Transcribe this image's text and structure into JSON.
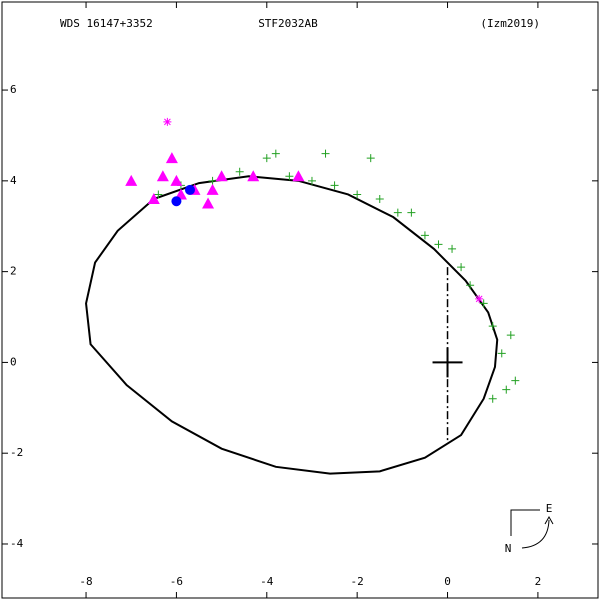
{
  "chart_data": {
    "type": "orbit",
    "title": "WDS 16147+3352",
    "subtitle": "STF2032AB",
    "source": "(Izm2019)",
    "compass": {
      "east": "E",
      "north": "N"
    },
    "xlim": [
      -9.86,
      3.33
    ],
    "ylim": [
      -5.19,
      7.94
    ],
    "xticks": [
      -8,
      -6,
      -4,
      -2,
      0,
      2
    ],
    "yticks": [
      -4,
      -2,
      0,
      2,
      4,
      6
    ],
    "series": [
      {
        "name": "orbit",
        "style": "line",
        "color": "#000000",
        "x": [
          -6.5,
          -5.5,
          -4.4,
          -3.3,
          -2.2,
          -1.2,
          -0.3,
          0.4,
          0.9,
          1.1,
          1.05,
          0.8,
          0.3,
          -0.5,
          -1.5,
          -2.6,
          -3.8,
          -5.0,
          -6.1,
          -7.1,
          -7.9,
          -8.0,
          -7.8,
          -7.3,
          -6.5
        ],
        "y": [
          3.6,
          3.95,
          4.1,
          4.0,
          3.7,
          3.2,
          2.5,
          1.8,
          1.1,
          0.5,
          -0.1,
          -0.8,
          -1.6,
          -2.1,
          -2.4,
          -2.45,
          -2.3,
          -1.9,
          -1.3,
          -0.5,
          0.4,
          1.3,
          2.2,
          2.9,
          3.6
        ]
      },
      {
        "name": "line of nodes",
        "style": "dashdot",
        "color": "#000000",
        "x": [
          0,
          0
        ],
        "y": [
          2.1,
          -1.75
        ]
      },
      {
        "name": "micrometric",
        "style": "plus",
        "color": "#22a022",
        "x": [
          -6.4,
          -5.9,
          -5.2,
          -4.6,
          -4.0,
          -3.8,
          -3.5,
          -3.0,
          -2.7,
          -2.5,
          -2.0,
          -1.7,
          -1.5,
          -1.1,
          -0.8,
          -0.5,
          -0.2,
          0.1,
          0.3,
          0.5,
          0.8,
          1.0,
          1.4,
          1.2,
          1.5,
          1.3,
          1.0
        ],
        "y": [
          3.7,
          3.9,
          4.0,
          4.2,
          4.5,
          4.6,
          4.1,
          4.0,
          4.6,
          3.9,
          3.7,
          4.5,
          3.6,
          3.3,
          3.3,
          2.8,
          2.6,
          2.5,
          2.1,
          1.7,
          1.3,
          0.8,
          0.6,
          0.2,
          -0.4,
          -0.6,
          -0.8
        ]
      },
      {
        "name": "photographic",
        "style": "triangle",
        "color": "#ff00ff",
        "x": [
          -7.0,
          -6.1,
          -6.3,
          -6.0,
          -5.9,
          -5.6,
          -5.2,
          -5.0,
          -5.3,
          -6.5,
          -3.3,
          -4.3
        ],
        "y": [
          4.0,
          4.5,
          4.1,
          4.0,
          3.7,
          3.8,
          3.8,
          4.1,
          3.5,
          3.6,
          4.1,
          4.1
        ]
      },
      {
        "name": "visual",
        "style": "star",
        "color": "#ff00ff",
        "x": [
          -6.2,
          0.7
        ],
        "y": [
          5.3,
          1.4
        ]
      },
      {
        "name": "interferometric",
        "style": "dot",
        "color": "#0000ff",
        "x": [
          -6.0,
          -5.7
        ],
        "y": [
          3.55,
          3.8
        ]
      }
    ]
  }
}
